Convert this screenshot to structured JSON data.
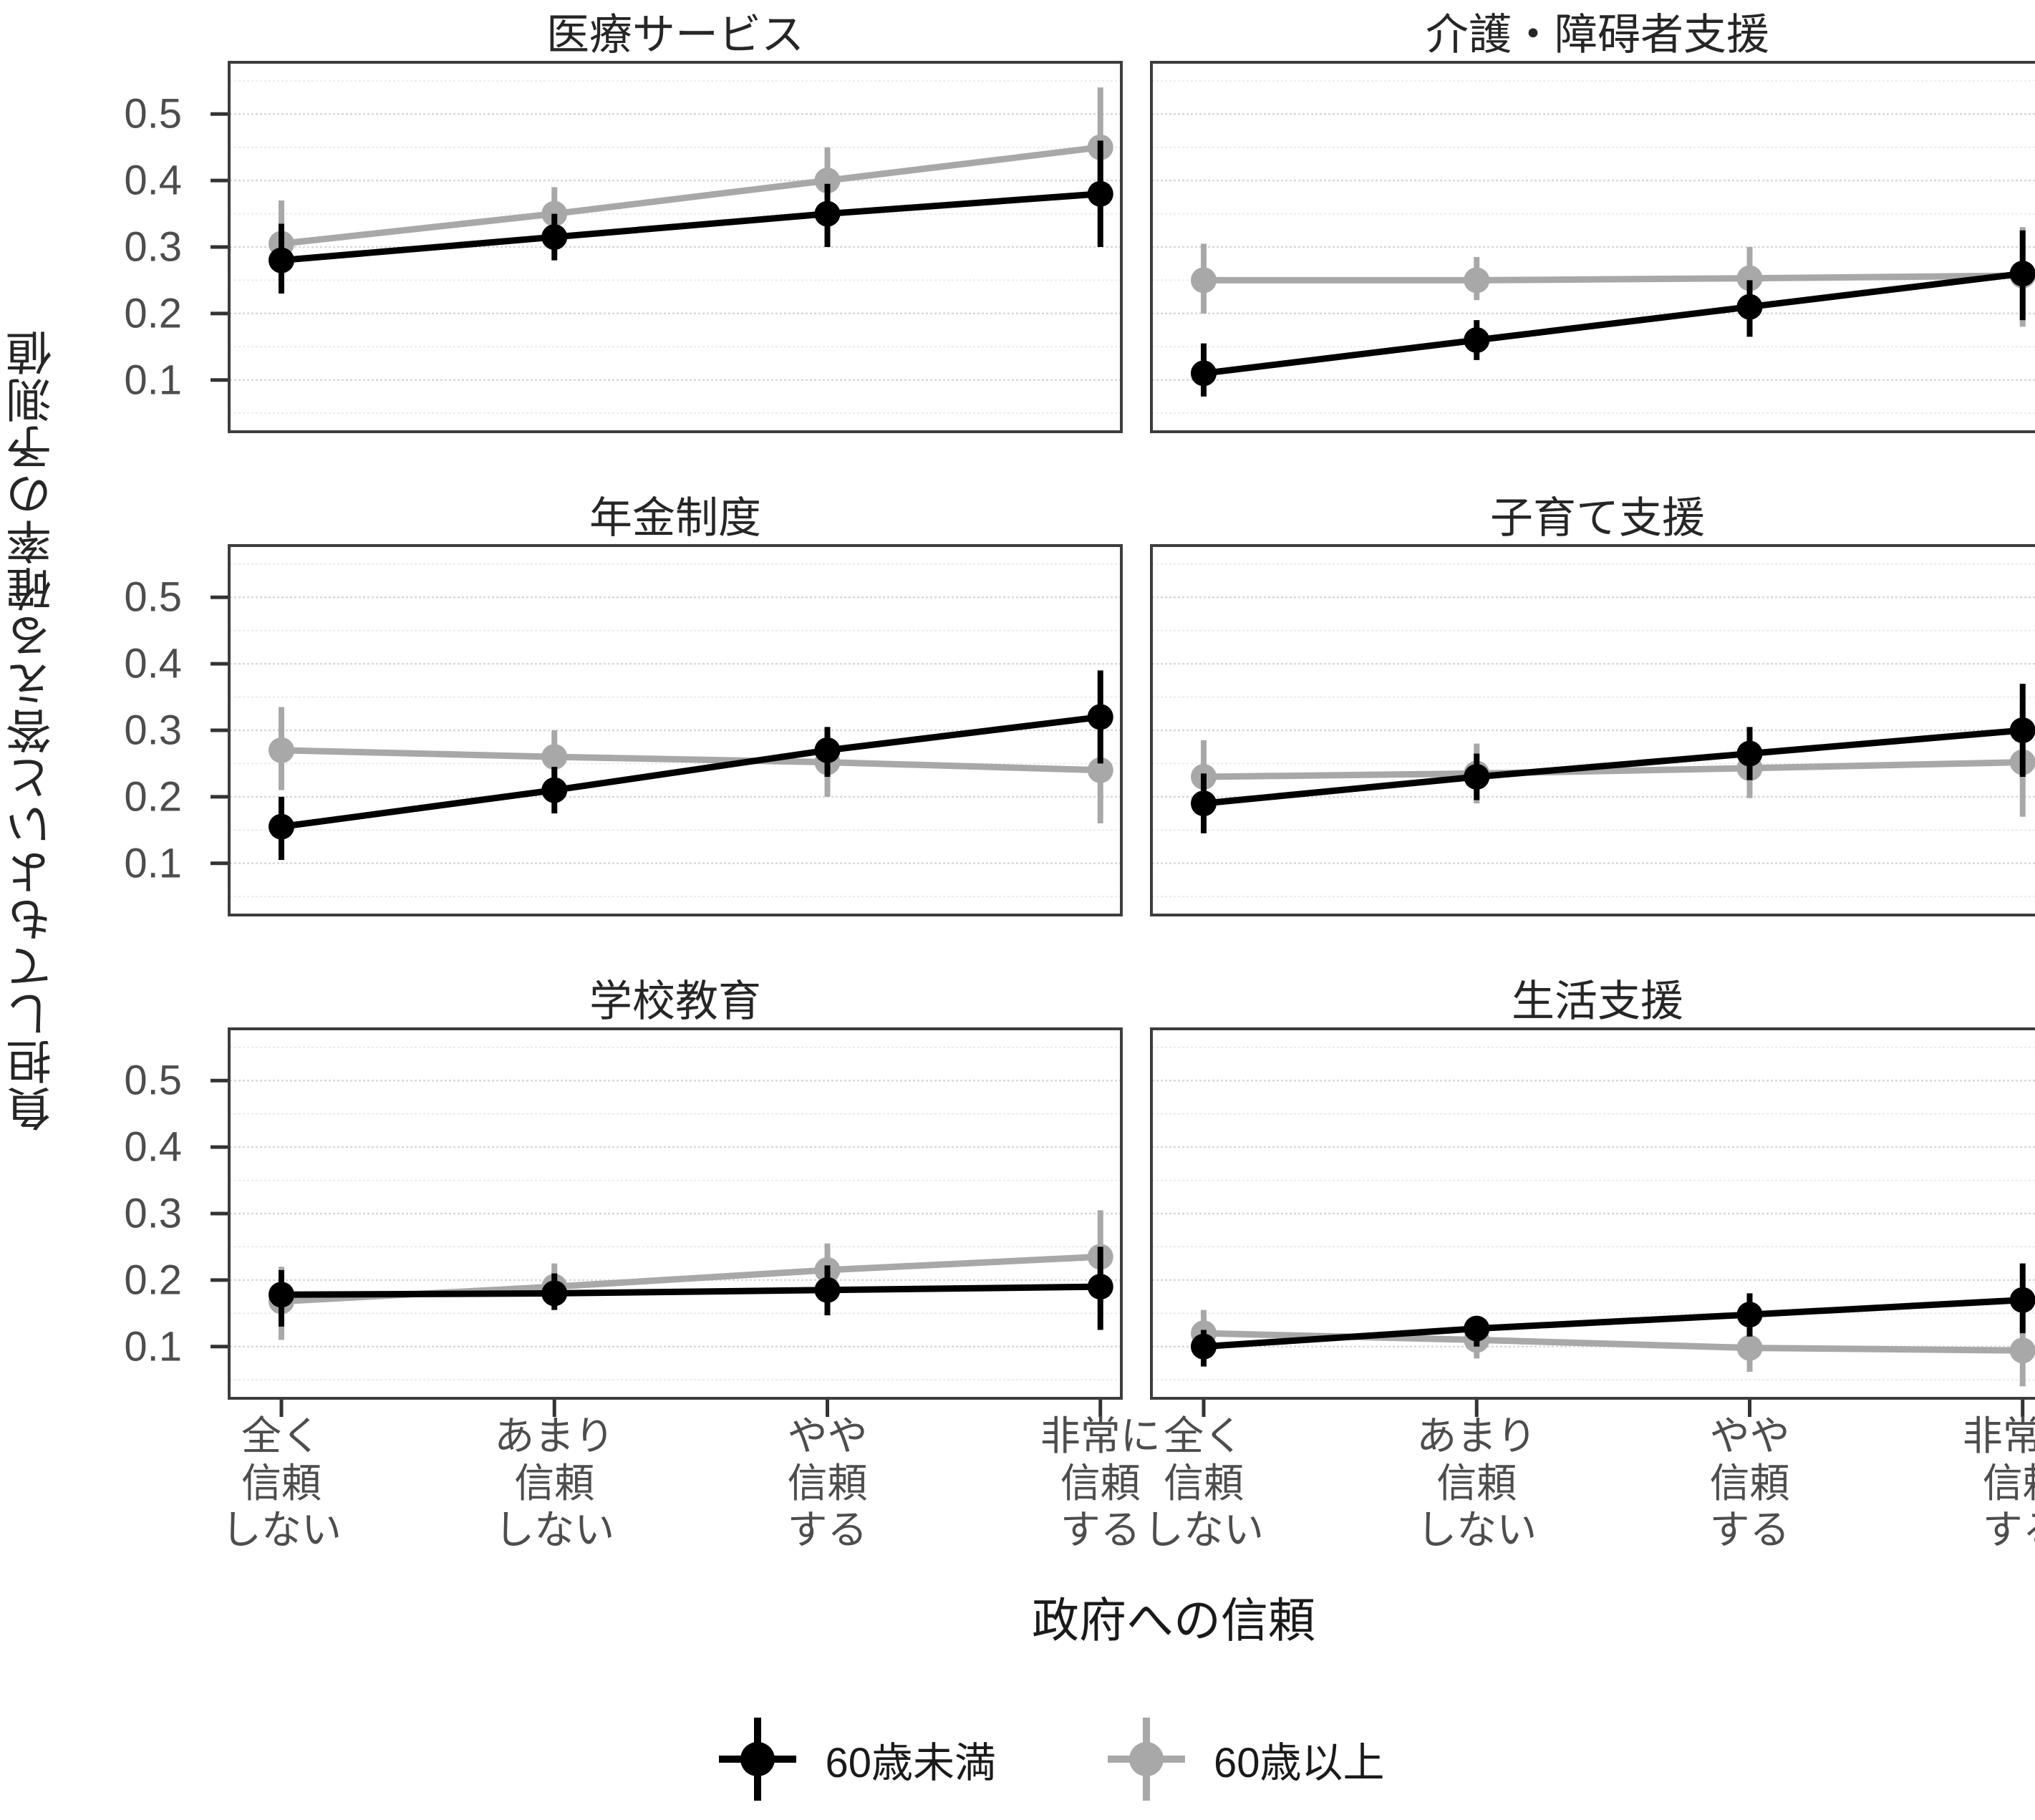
{
  "figure": {
    "y_axis_title": "負担してもよいと答える確率の予測値",
    "x_axis_title": "政府への信頼",
    "y_ticks": [
      "0.5",
      "0.4",
      "0.3",
      "0.2",
      "0.1"
    ],
    "y_tick_values": [
      0.5,
      0.4,
      0.3,
      0.2,
      0.1
    ],
    "x_categories": [
      [
        "全く",
        "信頼",
        "しない"
      ],
      [
        "あまり",
        "信頼",
        "しない"
      ],
      [
        "やや",
        "信頼",
        "する"
      ],
      [
        "非常に",
        "信頼",
        "する"
      ]
    ],
    "legend": [
      {
        "label": "60歳未満",
        "color": "#000000"
      },
      {
        "label": "60歳以上",
        "color": "#a8a8a8"
      }
    ],
    "colors": {
      "black_series": "#000000",
      "gray_series": "#a8a8a8",
      "grid_major": "#d8d8d8",
      "grid_minor": "#ebebeb",
      "panel_border": "#3d3d3d",
      "axis_text": "#4d4d4d"
    }
  },
  "chart_data": [
    {
      "type": "line",
      "title": "医療サービス",
      "xlabel": "政府への信頼",
      "ylabel": "負担してもよいと答える確率の予測値",
      "ylim": [
        0.02,
        0.58
      ],
      "grid": "on",
      "legend_position": "bottom",
      "categories": [
        "全く信頼しない",
        "あまり信頼しない",
        "やや信頼する",
        "非常に信頼する"
      ],
      "series": [
        {
          "name": "60歳未満",
          "color": "#000000",
          "values": [
            {
              "y": 0.28,
              "lo": 0.23,
              "hi": 0.335
            },
            {
              "y": 0.315,
              "lo": 0.28,
              "hi": 0.35
            },
            {
              "y": 0.35,
              "lo": 0.3,
              "hi": 0.395
            },
            {
              "y": 0.38,
              "lo": 0.3,
              "hi": 0.46
            }
          ]
        },
        {
          "name": "60歳以上",
          "color": "#a8a8a8",
          "values": [
            {
              "y": 0.305,
              "lo": 0.235,
              "hi": 0.37
            },
            {
              "y": 0.35,
              "lo": 0.31,
              "hi": 0.39
            },
            {
              "y": 0.4,
              "lo": 0.355,
              "hi": 0.45
            },
            {
              "y": 0.45,
              "lo": 0.36,
              "hi": 0.54
            }
          ]
        }
      ]
    },
    {
      "type": "line",
      "title": "介護・障碍者支援",
      "xlabel": "政府への信頼",
      "ylabel": "負担してもよいと答える確率の予測値",
      "ylim": [
        0.02,
        0.58
      ],
      "grid": "on",
      "legend_position": "bottom",
      "categories": [
        "全く信頼しない",
        "あまり信頼しない",
        "やや信頼する",
        "非常に信頼する"
      ],
      "series": [
        {
          "name": "60歳未満",
          "color": "#000000",
          "values": [
            {
              "y": 0.11,
              "lo": 0.075,
              "hi": 0.155
            },
            {
              "y": 0.16,
              "lo": 0.13,
              "hi": 0.19
            },
            {
              "y": 0.21,
              "lo": 0.165,
              "hi": 0.25
            },
            {
              "y": 0.26,
              "lo": 0.19,
              "hi": 0.325
            }
          ]
        },
        {
          "name": "60歳以上",
          "color": "#a8a8a8",
          "values": [
            {
              "y": 0.25,
              "lo": 0.2,
              "hi": 0.305
            },
            {
              "y": 0.25,
              "lo": 0.22,
              "hi": 0.285
            },
            {
              "y": 0.253,
              "lo": 0.207,
              "hi": 0.3
            },
            {
              "y": 0.257,
              "lo": 0.18,
              "hi": 0.33
            }
          ]
        }
      ]
    },
    {
      "type": "line",
      "title": "年金制度",
      "xlabel": "政府への信頼",
      "ylabel": "負担してもよいと答える確率の予測値",
      "ylim": [
        0.02,
        0.58
      ],
      "grid": "on",
      "legend_position": "bottom",
      "categories": [
        "全く信頼しない",
        "あまり信頼しない",
        "やや信頼する",
        "非常に信頼する"
      ],
      "series": [
        {
          "name": "60歳未満",
          "color": "#000000",
          "values": [
            {
              "y": 0.155,
              "lo": 0.105,
              "hi": 0.2
            },
            {
              "y": 0.21,
              "lo": 0.175,
              "hi": 0.245
            },
            {
              "y": 0.27,
              "lo": 0.23,
              "hi": 0.305
            },
            {
              "y": 0.32,
              "lo": 0.25,
              "hi": 0.39
            }
          ]
        },
        {
          "name": "60歳以上",
          "color": "#a8a8a8",
          "values": [
            {
              "y": 0.27,
              "lo": 0.21,
              "hi": 0.335
            },
            {
              "y": 0.26,
              "lo": 0.225,
              "hi": 0.3
            },
            {
              "y": 0.252,
              "lo": 0.2,
              "hi": 0.293
            },
            {
              "y": 0.24,
              "lo": 0.16,
              "hi": 0.315
            }
          ]
        }
      ]
    },
    {
      "type": "line",
      "title": "子育て支援",
      "xlabel": "政府への信頼",
      "ylabel": "負担してもよいと答える確率の予測値",
      "ylim": [
        0.02,
        0.58
      ],
      "grid": "on",
      "legend_position": "bottom",
      "categories": [
        "全く信頼しない",
        "あまり信頼しない",
        "やや信頼する",
        "非常に信頼する"
      ],
      "series": [
        {
          "name": "60歳未満",
          "color": "#000000",
          "values": [
            {
              "y": 0.19,
              "lo": 0.145,
              "hi": 0.235
            },
            {
              "y": 0.23,
              "lo": 0.195,
              "hi": 0.265
            },
            {
              "y": 0.265,
              "lo": 0.225,
              "hi": 0.305
            },
            {
              "y": 0.3,
              "lo": 0.23,
              "hi": 0.37
            }
          ]
        },
        {
          "name": "60歳以上",
          "color": "#a8a8a8",
          "values": [
            {
              "y": 0.23,
              "lo": 0.175,
              "hi": 0.285
            },
            {
              "y": 0.235,
              "lo": 0.19,
              "hi": 0.28
            },
            {
              "y": 0.243,
              "lo": 0.198,
              "hi": 0.29
            },
            {
              "y": 0.252,
              "lo": 0.17,
              "hi": 0.33
            }
          ]
        }
      ]
    },
    {
      "type": "line",
      "title": "学校教育",
      "xlabel": "政府への信頼",
      "ylabel": "負担してもよいと答える確率の予測値",
      "ylim": [
        0.02,
        0.58
      ],
      "grid": "on",
      "legend_position": "bottom",
      "categories": [
        "全く信頼しない",
        "あまり信頼しない",
        "やや信頼する",
        "非常に信頼する"
      ],
      "series": [
        {
          "name": "60歳未満",
          "color": "#000000",
          "values": [
            {
              "y": 0.178,
              "lo": 0.13,
              "hi": 0.215
            },
            {
              "y": 0.18,
              "lo": 0.155,
              "hi": 0.21
            },
            {
              "y": 0.185,
              "lo": 0.147,
              "hi": 0.222
            },
            {
              "y": 0.19,
              "lo": 0.125,
              "hi": 0.25
            }
          ]
        },
        {
          "name": "60歳以上",
          "color": "#a8a8a8",
          "values": [
            {
              "y": 0.168,
              "lo": 0.11,
              "hi": 0.22
            },
            {
              "y": 0.19,
              "lo": 0.16,
              "hi": 0.225
            },
            {
              "y": 0.215,
              "lo": 0.175,
              "hi": 0.255
            },
            {
              "y": 0.235,
              "lo": 0.165,
              "hi": 0.305
            }
          ]
        }
      ]
    },
    {
      "type": "line",
      "title": "生活支援",
      "xlabel": "政府への信頼",
      "ylabel": "負担してもよいと答える確率の予測値",
      "ylim": [
        0.02,
        0.58
      ],
      "grid": "on",
      "legend_position": "bottom",
      "categories": [
        "全く信頼しない",
        "あまり信頼しない",
        "やや信頼する",
        "非常に信頼する"
      ],
      "series": [
        {
          "name": "60歳未満",
          "color": "#000000",
          "values": [
            {
              "y": 0.1,
              "lo": 0.07,
              "hi": 0.125
            },
            {
              "y": 0.127,
              "lo": 0.1,
              "hi": 0.145
            },
            {
              "y": 0.148,
              "lo": 0.115,
              "hi": 0.18
            },
            {
              "y": 0.17,
              "lo": 0.12,
              "hi": 0.225
            }
          ]
        },
        {
          "name": "60歳以上",
          "color": "#a8a8a8",
          "values": [
            {
              "y": 0.12,
              "lo": 0.08,
              "hi": 0.155
            },
            {
              "y": 0.11,
              "lo": 0.082,
              "hi": 0.138
            },
            {
              "y": 0.098,
              "lo": 0.062,
              "hi": 0.13
            },
            {
              "y": 0.094,
              "lo": 0.04,
              "hi": 0.15
            }
          ]
        }
      ]
    }
  ]
}
